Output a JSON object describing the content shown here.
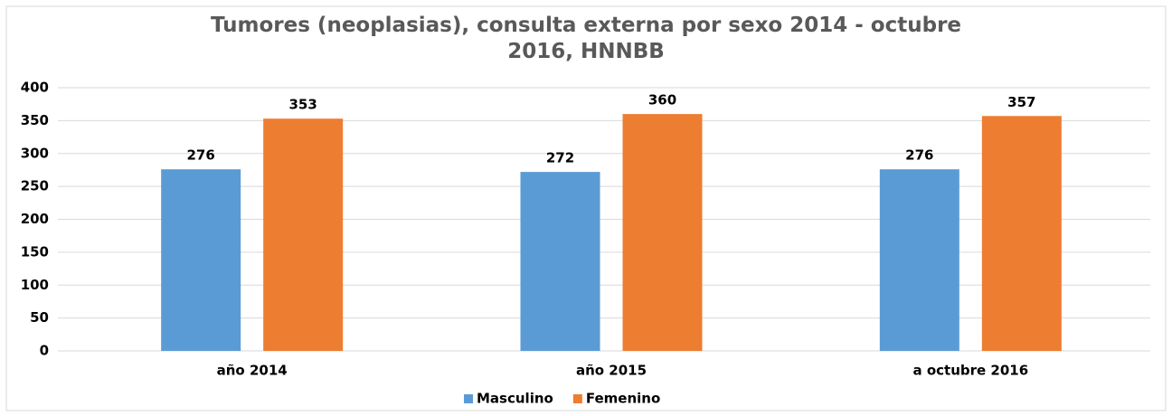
{
  "chart_data": {
    "type": "bar",
    "title": "Tumores (neoplasias), consulta externa por sexo 2014 - octubre 2016, HNNBB",
    "categories": [
      "año 2014",
      "año 2015",
      "a octubre 2016"
    ],
    "series": [
      {
        "name": "Masculino",
        "color": "#5b9bd5",
        "values": [
          276,
          272,
          276
        ]
      },
      {
        "name": "Femenino",
        "color": "#ed7d31",
        "values": [
          353,
          360,
          357
        ]
      }
    ],
    "ylim": [
      0,
      400
    ],
    "yticks": [
      0,
      50,
      100,
      150,
      200,
      250,
      300,
      350,
      400
    ],
    "grid": true,
    "legend": "bottom"
  }
}
